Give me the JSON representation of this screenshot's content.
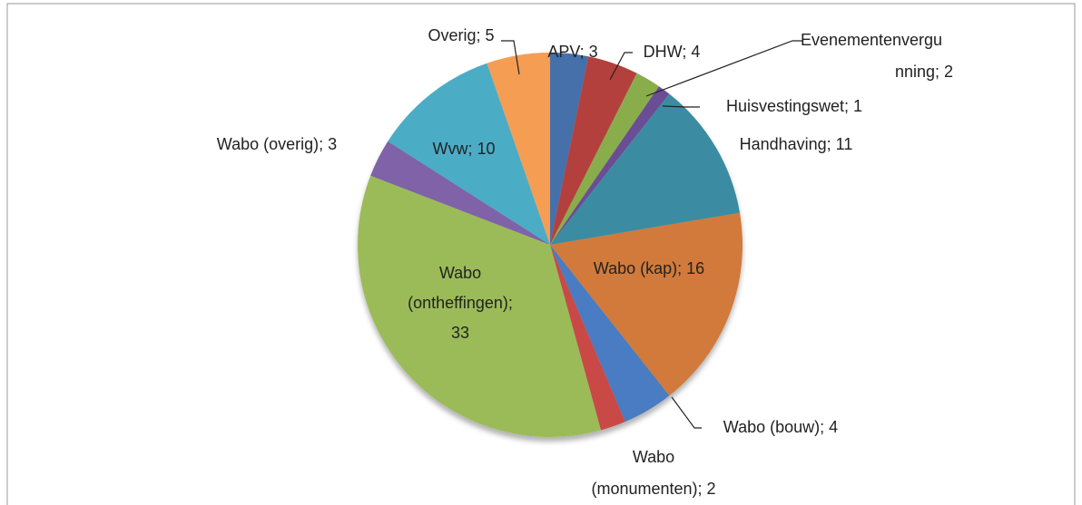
{
  "chart_data": {
    "type": "pie",
    "values": [
      3,
      4,
      2,
      1,
      11,
      16,
      4,
      2,
      33,
      3,
      10,
      5
    ],
    "value_labels": [
      [
        "APV; 3"
      ],
      [
        "DHW; 4"
      ],
      [
        "Evenementenvergu",
        "nning; 2"
      ],
      [
        "Huisvestingswet; 1"
      ],
      [
        "Handhaving; 11"
      ],
      [
        "Wabo (kap); 16"
      ],
      [
        "Wabo (bouw); 4"
      ],
      [
        "Wabo",
        "(monumenten); 2"
      ],
      [
        "Wabo",
        "(ontheffingen);",
        "33"
      ],
      [
        "Wabo (overig); 3"
      ],
      [
        "Wvw; 10"
      ],
      [
        "Overig; 5"
      ]
    ],
    "colors": [
      "#4470aa",
      "#b4413e",
      "#8aad4c",
      "#6b4d95",
      "#3a8ca2",
      "#d17a3a",
      "#4a7bc2",
      "#c94a47",
      "#9bbb59",
      "#7f62a8",
      "#4bacc6",
      "#f59d52"
    ]
  }
}
